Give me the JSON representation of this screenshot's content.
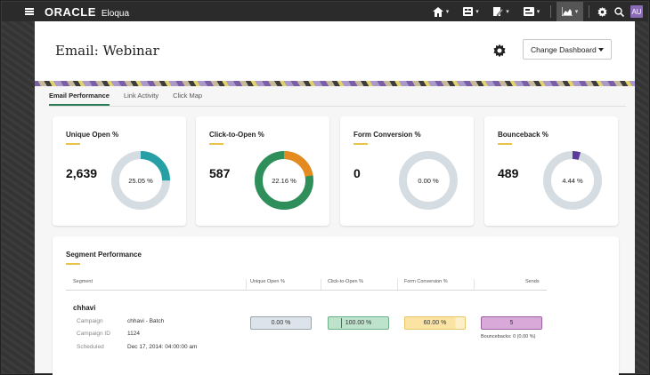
{
  "app": {
    "brand": "ORACLE",
    "product": "Eloqua",
    "avatar": "AU"
  },
  "nav": {
    "icons": [
      "home-icon",
      "grid-icon",
      "pen-icon",
      "report-icon",
      "chart-icon",
      "gear-icon",
      "search-icon"
    ],
    "caret": "▾"
  },
  "page": {
    "title": "Email: Webinar",
    "dashboard_select": "Change Dashboard"
  },
  "tabs": [
    "Email Performance",
    "Link Activity",
    "Click Map"
  ],
  "kpis": [
    {
      "title": "Unique Open %",
      "value": "2,639",
      "pct_label": "25.05 %",
      "pct": 0.2505,
      "color": "#26a0a5"
    },
    {
      "title": "Click-to-Open %",
      "value": "587",
      "pct_label": "22.16 %",
      "pct": 0.2216,
      "color": "#e58a1e",
      "rest_color": "#2f8f5b"
    },
    {
      "title": "Form Conversion %",
      "value": "0",
      "pct_label": "0.00 %",
      "pct": 0,
      "color": "#d5dde3"
    },
    {
      "title": "Bounceback %",
      "value": "489",
      "pct_label": "4.44 %",
      "pct": 0.0444,
      "color": "#5a3a9a"
    }
  ],
  "segment": {
    "title": "Segment Performance",
    "headers": [
      "Segment",
      "Unique Open %",
      "Click-to-Open %",
      "Form Conversion %",
      "Sends"
    ],
    "name": "chhavi",
    "details": [
      {
        "label": "Campaign",
        "value": "chhavi - Batch"
      },
      {
        "label": "Campaign ID",
        "value": "1124"
      },
      {
        "label": "Scheduled",
        "value": "Dec 17, 2014: 04:00:00 am"
      }
    ],
    "unique_open": "0.00 %",
    "click_to_open": "100.00 %",
    "form_conversion": "60.00 %",
    "sends": "5",
    "bouncebacks": "Bouncebacks: 0 (0.00 %)"
  }
}
